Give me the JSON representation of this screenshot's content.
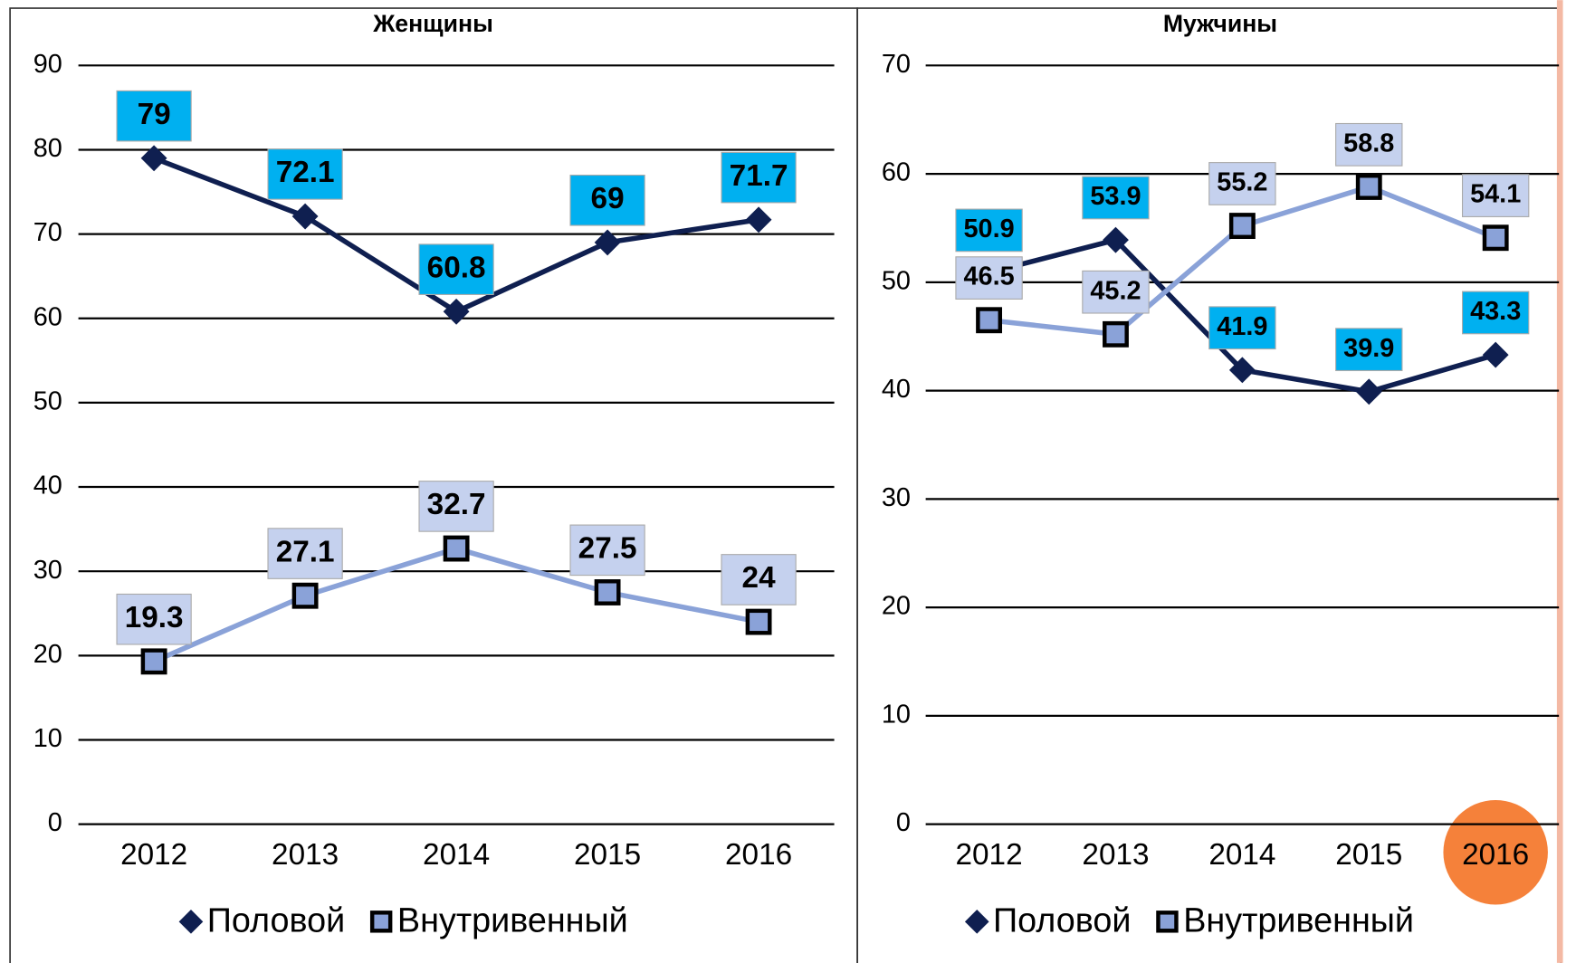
{
  "chart_data": [
    {
      "type": "line",
      "title": "Женщины",
      "categories": [
        "2012",
        "2013",
        "2014",
        "2015",
        "2016"
      ],
      "series": [
        {
          "name": "Половой",
          "color": "#0f1f50",
          "marker": "diamond",
          "label_color": "#00b0f0",
          "values": [
            79,
            72.1,
            60.8,
            69,
            71.7
          ]
        },
        {
          "name": "Внутривенный",
          "color": "#8aa2d8",
          "marker": "square",
          "label_color": "#c5d1ee",
          "values": [
            19.3,
            27.1,
            32.7,
            27.5,
            24
          ]
        }
      ],
      "ylim": [
        0,
        90
      ],
      "yticks": [
        0,
        10,
        20,
        30,
        40,
        50,
        60,
        70,
        80,
        90
      ],
      "grid": true,
      "legend": "bottom"
    },
    {
      "type": "line",
      "title": "Мужчины",
      "categories": [
        "2012",
        "2013",
        "2014",
        "2015",
        "2016"
      ],
      "series": [
        {
          "name": "Половой",
          "color": "#0f1f50",
          "marker": "diamond",
          "label_color": "#00b0f0",
          "values": [
            50.9,
            53.9,
            41.9,
            39.9,
            43.3
          ]
        },
        {
          "name": "Внутривенный",
          "color": "#8aa2d8",
          "marker": "square",
          "label_color": "#c5d1ee",
          "values": [
            46.5,
            45.2,
            55.2,
            58.8,
            54.1
          ]
        }
      ],
      "ylim": [
        0,
        70
      ],
      "yticks": [
        0,
        10,
        20,
        30,
        40,
        50,
        60,
        70
      ],
      "grid": true,
      "legend": "bottom"
    }
  ]
}
